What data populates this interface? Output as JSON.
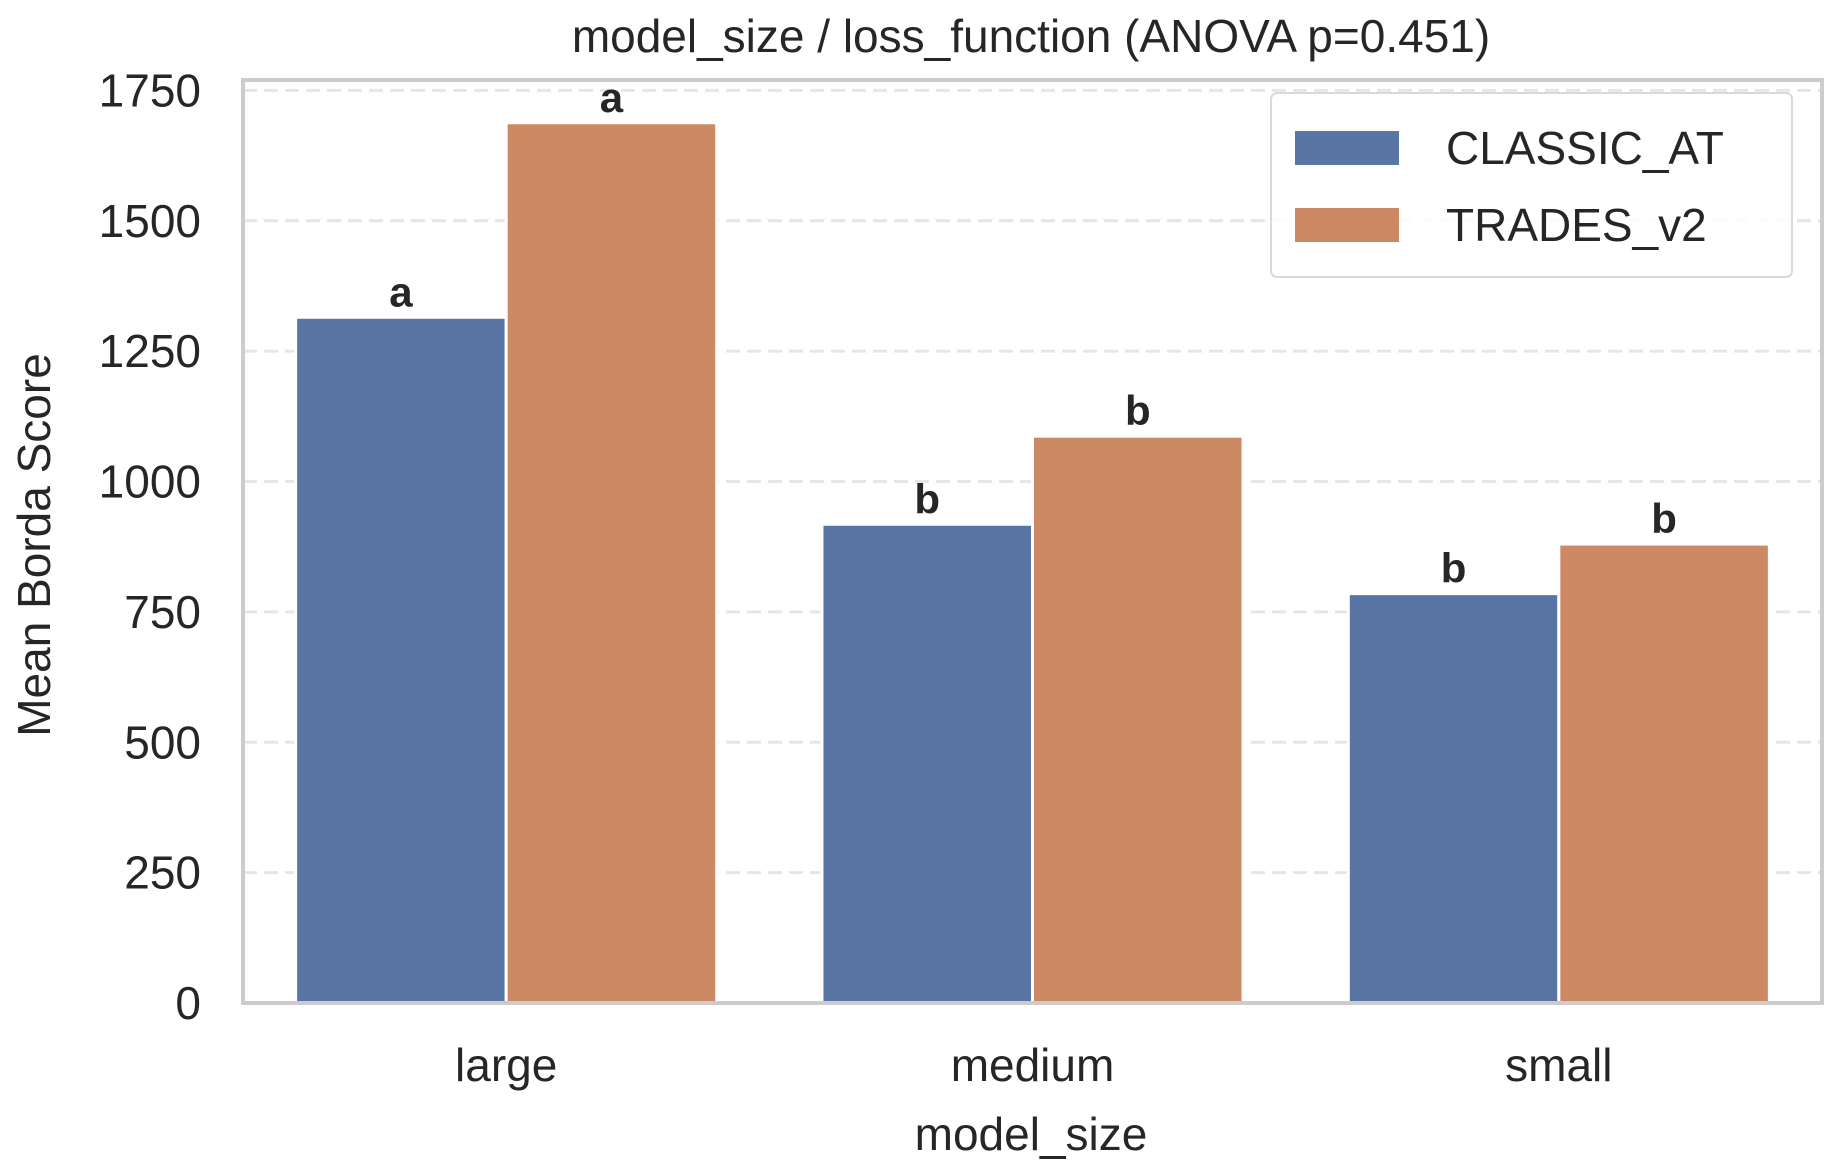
{
  "chart_data": {
    "type": "bar",
    "title": "model_size / loss_function  (ANOVA p=0.451)",
    "xlabel": "model_size",
    "ylabel": "Mean Borda Score",
    "categories": [
      "large",
      "medium",
      "small"
    ],
    "ylim": [
      0,
      1770
    ],
    "yticks": [
      0,
      250,
      500,
      750,
      1000,
      1250,
      1500,
      1750
    ],
    "grid": true,
    "legend_position": "top-right",
    "series": [
      {
        "name": "CLASSIC_AT",
        "color": "#5975a4",
        "values": [
          1315,
          918,
          785
        ],
        "labels": [
          "a",
          "b",
          "b"
        ]
      },
      {
        "name": "TRADES_v2",
        "color": "#cc8963",
        "values": [
          1688,
          1087,
          880
        ],
        "labels": [
          "a",
          "b",
          "b"
        ]
      }
    ]
  }
}
